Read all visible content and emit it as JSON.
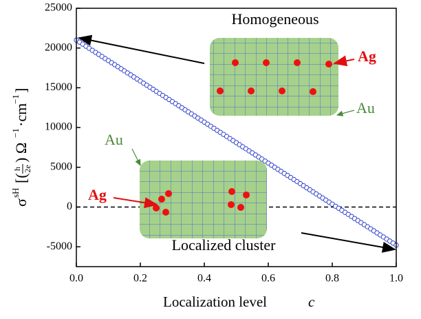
{
  "chart_data": {
    "type": "scatter",
    "x": [
      0,
      0.01,
      0.02,
      0.03,
      0.04,
      0.05,
      0.06,
      0.07,
      0.08,
      0.09,
      0.1,
      0.11,
      0.12,
      0.13,
      0.14,
      0.15,
      0.16,
      0.17,
      0.18,
      0.19,
      0.2,
      0.21,
      0.22,
      0.23,
      0.24,
      0.25,
      0.26,
      0.27,
      0.28,
      0.29,
      0.3,
      0.31,
      0.32,
      0.33,
      0.34,
      0.35,
      0.36,
      0.37,
      0.38,
      0.39,
      0.4,
      0.41,
      0.42,
      0.43,
      0.44,
      0.45,
      0.46,
      0.47,
      0.48,
      0.49,
      0.5,
      0.51,
      0.52,
      0.53,
      0.54,
      0.55,
      0.56,
      0.57,
      0.58,
      0.59,
      0.6,
      0.61,
      0.62,
      0.63,
      0.64,
      0.65,
      0.66,
      0.67,
      0.68,
      0.69,
      0.7,
      0.71,
      0.72,
      0.73,
      0.74,
      0.75,
      0.76,
      0.77,
      0.78,
      0.79,
      0.8,
      0.81,
      0.82,
      0.83,
      0.84,
      0.85,
      0.86,
      0.87,
      0.88,
      0.89,
      0.9,
      0.91,
      0.92,
      0.93,
      0.94,
      0.95,
      0.96,
      0.97,
      0.98,
      0.99,
      1
    ],
    "values": [
      21000,
      20742,
      20484,
      20226,
      19968,
      19710,
      19452,
      19194,
      18936,
      18678,
      18420,
      18162,
      17904,
      17646,
      17388,
      17130,
      16872,
      16614,
      16356,
      16098,
      15840,
      15582,
      15324,
      15066,
      14808,
      14550,
      14292,
      14034,
      13776,
      13518,
      13260,
      13002,
      12744,
      12486,
      12228,
      11970,
      11712,
      11454,
      11196,
      10938,
      10680,
      10422,
      10164,
      9906,
      9648,
      9390,
      9132,
      8874,
      8616,
      8358,
      8100,
      7842,
      7584,
      7326,
      7068,
      6810,
      6552,
      6294,
      6036,
      5778,
      5520,
      5262,
      5004,
      4746,
      4488,
      4230,
      3972,
      3714,
      3456,
      3198,
      2940,
      2682,
      2424,
      2166,
      1908,
      1650,
      1392,
      1134,
      876,
      618,
      360,
      102,
      -156,
      -414,
      -672,
      -930,
      -1188,
      -1446,
      -1704,
      -1962,
      -2220,
      -2478,
      -2736,
      -2994,
      -3252,
      -3510,
      -3768,
      -4026,
      -4284,
      -4542,
      -4800
    ],
    "color": "#3344cc",
    "xlim": [
      0,
      1
    ],
    "ylim": [
      -7500,
      25000
    ],
    "xticks": [
      {
        "value": 0,
        "label": "0.0"
      },
      0.2,
      0.4,
      0.6,
      0.8,
      {
        "value": 1,
        "label": "1.0"
      }
    ],
    "yticks": [
      -5000,
      0,
      5000,
      10000,
      15000,
      20000,
      25000
    ],
    "hline": 0,
    "x_label": [
      "Localization level ",
      "c"
    ],
    "y_label": [
      "σ",
      "sH",
      "[(",
      "h",
      "2e",
      ") Ω",
      "−1",
      "·cm",
      "−1",
      "]"
    ],
    "annotations": {
      "homogeneous": "Homogeneous",
      "cluster": "Localized cluster",
      "ag_top": "Ag",
      "au_top": "Au",
      "ag_bottom": "Ag",
      "au_bottom": "Au"
    }
  }
}
